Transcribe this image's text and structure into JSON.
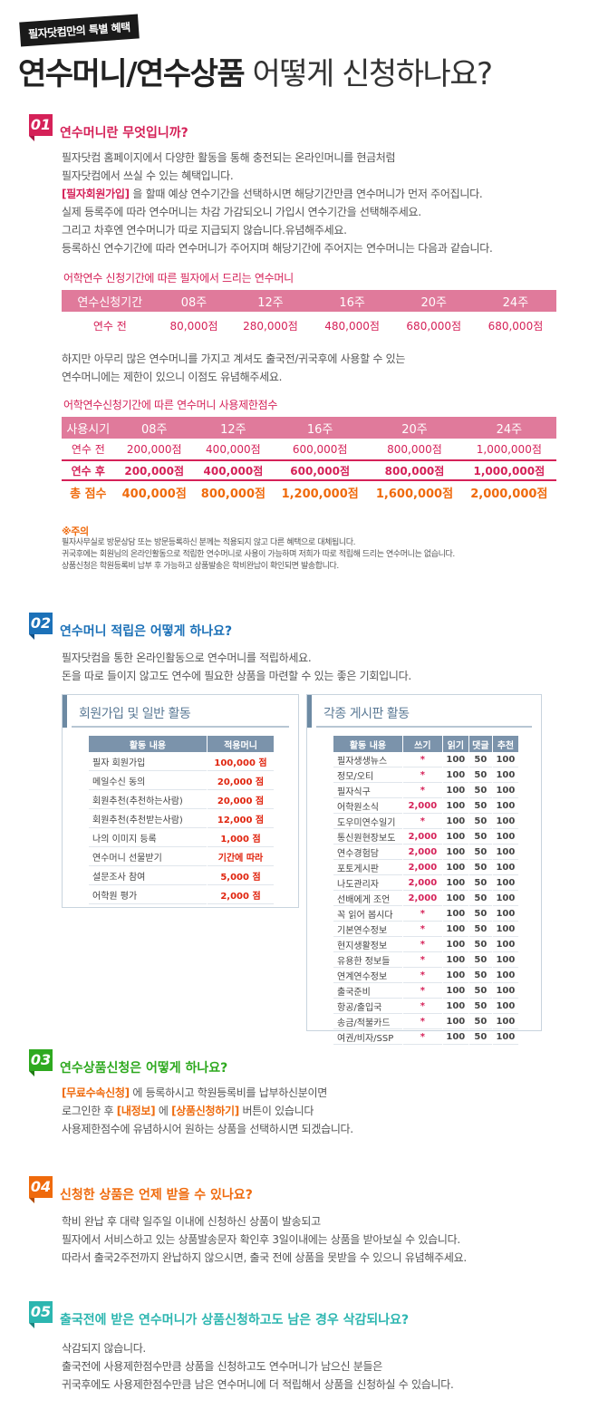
{
  "header": {
    "tag": "필자닷컴만의 특별 혜택",
    "title_bold": "연수머니/연수상품",
    "title_light": "어떻게 신청하나요?"
  },
  "s1": {
    "num": "01",
    "title": "연수머니란 무엇입니까?",
    "lines": [
      "필자닷컴 홈페이지에서 다양한 활동을 통해 충전되는 온라인머니를 현금처럼",
      "필자닷컴에서 쓰실 수 있는 혜택입니다.",
      "을 할때 예상 연수기간을 선택하시면 해당기간만큼 연수머니가 먼저 주어집니다.",
      "실제 등록주에 따라 연수머니는 차감 가감되오니 가입시 연수기간을 선택해주세요.",
      "그리고 차후엔 연수머니가 따로 지급되지 않습니다.유념해주세요.",
      "등록하신 연수기간에 따라 연수머니가 주어지며 해당기간에 주어지는 연수머니는 다음과 같습니다."
    ],
    "highlight": "[필자회원가입]",
    "table1_caption": "어학연수 신청기간에 따른 필자에서 드리는 연수머니",
    "table1": {
      "headers": [
        "연수신청기간",
        "08주",
        "12주",
        "16주",
        "20주",
        "24주"
      ],
      "row": [
        "연수 전",
        "80,000점",
        "280,000점",
        "480,000점",
        "680,000점",
        "680,000점"
      ]
    },
    "mid_lines": [
      "하지만 아무리 많은 연수머니를 가지고 계셔도 출국전/귀국후에 사용할 수 있는",
      "연수머니에는 제한이 있으니 이점도 유념해주세요."
    ],
    "table2_caption": "어학연수신청기간에 따른 연수머니 사용제한점수",
    "table2": {
      "headers": [
        "사용시기",
        "08주",
        "12주",
        "16주",
        "20주",
        "24주"
      ],
      "rows": [
        [
          "연수 전",
          "200,000점",
          "400,000점",
          "600,000점",
          "800,000점",
          "1,000,000점"
        ],
        [
          "연수 후",
          "200,000점",
          "400,000점",
          "600,000점",
          "800,000점",
          "1,000,000점"
        ],
        [
          "총 점수",
          "400,000점",
          "800,000점",
          "1,200,000점",
          "1,600,000점",
          "2,000,000점"
        ]
      ]
    },
    "notes_title": "※주의",
    "notes": [
      "필자사무실로 방문상담 또는 방문등록하신 분께는 적용되지 않고 다른 혜택으로 대체됩니다.",
      "귀국후에는 회원님의 온라인활동으로 적립한 연수머니로 사용이 가능하며 저희가 따로 적립해 드리는 연수머니는 없습니다.",
      "상품신청은 학원등록비 납부 후 가능하고 상품발송은 학비완납이 확인되면 발송합니다."
    ]
  },
  "s2": {
    "num": "02",
    "title": "연수머니 적립은 어떻게 하나요?",
    "lines": [
      "필자닷컴을 통한 온라인활동으로 연수머니를 적립하세요.",
      "돈을 따로 들이지 않고도 연수에 필요한 상품을 마련할 수 있는 좋은 기회입니다."
    ],
    "box1": {
      "title": "회원가입 및 일반 활동",
      "headers": [
        "활동 내용",
        "적용머니"
      ],
      "rows": [
        [
          "필자 회원가입",
          "100,000 점"
        ],
        [
          "메일수신 동의",
          "20,000 점"
        ],
        [
          "회원추천(추천하는사람)",
          "20,000 점"
        ],
        [
          "회원추천(추천받는사람)",
          "12,000 점"
        ],
        [
          "나의 이미지 등록",
          "1,000 점"
        ],
        [
          "연수머니 선물받기",
          "기간에 따라"
        ],
        [
          "설문조사 참여",
          "5,000 점"
        ],
        [
          "어학원 평가",
          "2,000 점"
        ]
      ]
    },
    "box2": {
      "title": "각종 게시판 활동",
      "headers": [
        "활동 내용",
        "쓰기",
        "읽기",
        "댓글",
        "추천"
      ],
      "rows": [
        [
          "필자생생뉴스",
          "*",
          "100",
          "50",
          "100"
        ],
        [
          "정모/오티",
          "*",
          "100",
          "50",
          "100"
        ],
        [
          "필자식구",
          "*",
          "100",
          "50",
          "100"
        ],
        [
          "어학원소식",
          "2,000",
          "100",
          "50",
          "100"
        ],
        [
          "도우미연수일기",
          "*",
          "100",
          "50",
          "100"
        ],
        [
          "통신원현장보도",
          "2,000",
          "100",
          "50",
          "100"
        ],
        [
          "연수경험담",
          "2,000",
          "100",
          "50",
          "100"
        ],
        [
          "포토게시판",
          "2,000",
          "100",
          "50",
          "100"
        ],
        [
          "나도관리자",
          "2,000",
          "100",
          "50",
          "100"
        ],
        [
          "선배에게 조언",
          "2,000",
          "100",
          "50",
          "100"
        ],
        [
          "꼭 읽어 봅시다",
          "*",
          "100",
          "50",
          "100"
        ],
        [
          "기본연수정보",
          "*",
          "100",
          "50",
          "100"
        ],
        [
          "현지생활정보",
          "*",
          "100",
          "50",
          "100"
        ],
        [
          "유용한 정보들",
          "*",
          "100",
          "50",
          "100"
        ],
        [
          "연계연수정보",
          "*",
          "100",
          "50",
          "100"
        ],
        [
          "출국준비",
          "*",
          "100",
          "50",
          "100"
        ],
        [
          "항공/출입국",
          "*",
          "100",
          "50",
          "100"
        ],
        [
          "송금/적불카드",
          "*",
          "100",
          "50",
          "100"
        ],
        [
          "여권/비자/SSP",
          "*",
          "100",
          "50",
          "100"
        ]
      ]
    }
  },
  "s3": {
    "num": "03",
    "title": "연수상품신청은 어떻게 하나요?",
    "l1_hl": "[무료수속신청]",
    "l1": "에 등록하시고 학원등록비를 납부하신분이면",
    "l2_a": "로그인한 후",
    "l2_hl1": "[내정보]",
    "l2_b": "에",
    "l2_hl2": "[상품신청하기]",
    "l2_c": "버튼이 있습니다",
    "l3": "사용제한점수에 유념하시어 원하는 상품을 선택하시면 되겠습니다."
  },
  "s4": {
    "num": "04",
    "title": "신청한 상품은 언제 받을 수 있나요?",
    "lines": [
      "학비 완납 후 대략 일주일 이내에 신청하신 상품이 발송되고",
      "필자에서 서비스하고 있는 상품발송문자 확인후 3일이내에는 상품을 받아보실 수 있습니다.",
      "따라서 출국2주전까지 완납하지 않으시면, 출국 전에 상품을 못받을 수 있으니 유념해주세요."
    ]
  },
  "s5": {
    "num": "05",
    "title": "출국전에 받은 연수머니가 상품신청하고도 남은 경우 삭감되나요?",
    "lines": [
      "삭감되지 않습니다.",
      "출국전에 사용제한점수만큼 상품을 신청하고도 연수머니가 남으신 분들은",
      "귀국후에도 사용제한점수만큼 남은 연수머니에 더 적립해서 상품을 신청하실 수 있습니다."
    ]
  }
}
